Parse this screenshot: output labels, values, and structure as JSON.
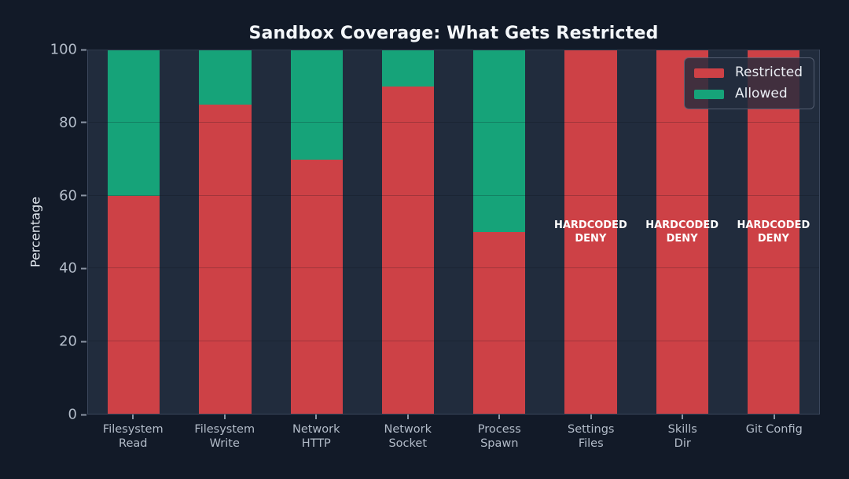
{
  "page": {
    "background_color": "#121a28",
    "plot_background_color": "#212c3d"
  },
  "chart_data": {
    "type": "bar",
    "stacked": true,
    "title": "Sandbox Coverage: What Gets Restricted",
    "xlabel": "",
    "ylabel": "Percentage",
    "ylim": [
      0,
      100
    ],
    "yticks": [
      0,
      20,
      40,
      60,
      80,
      100
    ],
    "grid": true,
    "categories": [
      "Filesystem\nRead",
      "Filesystem\nWrite",
      "Network\nHTTP",
      "Network\nSocket",
      "Process\nSpawn",
      "Settings\nFiles",
      "Skills\nDir",
      "Git Config"
    ],
    "series": [
      {
        "name": "Restricted",
        "color": "#cd4146",
        "values": [
          60,
          85,
          70,
          90,
          50,
          100,
          100,
          100
        ]
      },
      {
        "name": "Allowed",
        "color": "#16a379",
        "values": [
          40,
          15,
          30,
          10,
          50,
          0,
          0,
          0
        ]
      }
    ],
    "annotations": [
      {
        "category_index": 5,
        "y": 50,
        "text": "HARDCODED\nDENY"
      },
      {
        "category_index": 6,
        "y": 50,
        "text": "HARDCODED\nDENY"
      },
      {
        "category_index": 7,
        "y": 50,
        "text": "HARDCODED\nDENY"
      }
    ],
    "legend": {
      "position": "upper right",
      "entries": [
        "Restricted",
        "Allowed"
      ]
    }
  }
}
